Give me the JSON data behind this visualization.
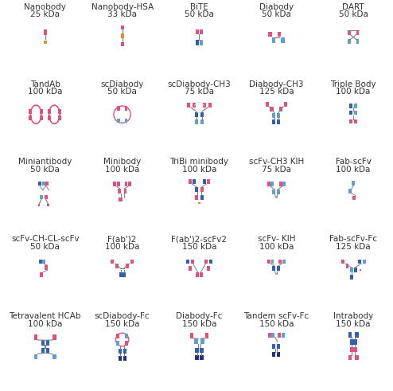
{
  "grid": [
    [
      {
        "name": "Nanobody",
        "mw": "25 kDa",
        "type": "nanobody"
      },
      {
        "name": "Nanobody-HSA",
        "mw": "33 kDa",
        "type": "nanobody_hsa"
      },
      {
        "name": "BiTE",
        "mw": "50 kDa",
        "type": "bite"
      },
      {
        "name": "Diabody",
        "mw": "50 kDa",
        "type": "diabody"
      },
      {
        "name": "DART",
        "mw": "50 kDa",
        "type": "dart"
      }
    ],
    [
      {
        "name": "TandAb",
        "mw": "100 kDa",
        "type": "tandab"
      },
      {
        "name": "scDiabody",
        "mw": "50 kDa",
        "type": "scdiabody"
      },
      {
        "name": "scDiabody-CH3",
        "mw": "75 kDa",
        "type": "scdiabody_ch3"
      },
      {
        "name": "Diabody-CH3",
        "mw": "125 kDa",
        "type": "diabody_ch3"
      },
      {
        "name": "Triple Body",
        "mw": "100 kDa",
        "type": "triple_body"
      }
    ],
    [
      {
        "name": "Miniantibody",
        "mw": "50 kDa",
        "type": "miniantibody"
      },
      {
        "name": "Minibody",
        "mw": "100 kDa",
        "type": "minibody"
      },
      {
        "name": "TriBi minibody",
        "mw": "100 kDa",
        "type": "tribi_minibody"
      },
      {
        "name": "scFv-CH3 KIH",
        "mw": "75 kDa",
        "type": "scfv_ch3_kih"
      },
      {
        "name": "Fab-scFv",
        "mw": "100 kDa",
        "type": "fab_scfv"
      }
    ],
    [
      {
        "name": "scFv-CH-CL-scFv",
        "mw": "50 kDa",
        "type": "scfv_ch_cl_scfv"
      },
      {
        "name": "F(ab')2",
        "mw": "100 kDa",
        "type": "fab2"
      },
      {
        "name": "F(ab')2-scFv2",
        "mw": "150 kDa",
        "type": "fab2_scfv2"
      },
      {
        "name": "scFv- KIH",
        "mw": "100 kDa",
        "type": "scfv_kih"
      },
      {
        "name": "Fab-scFv-Fc",
        "mw": "125 kDa",
        "type": "fab_scfv_fc"
      }
    ],
    [
      {
        "name": "Tetravalent HCAb",
        "mw": "100 kDa",
        "type": "tetravalent_hcab"
      },
      {
        "name": "scDiabody-Fc",
        "mw": "150 kDa",
        "type": "scdiabody_fc"
      },
      {
        "name": "Diabody-Fc",
        "mw": "150 kDa",
        "type": "diabody_fc"
      },
      {
        "name": "Tandem scFv-Fc",
        "mw": "150 kDa",
        "type": "tandem_scfv_fc"
      },
      {
        "name": "Intrabody",
        "mw": "150 kDa",
        "type": "intrabody"
      }
    ]
  ],
  "colors": {
    "pink": "#E05080",
    "blue": "#3060B0",
    "light_blue": "#60A0D0",
    "orange": "#E09030",
    "white": "#FFFFFF",
    "gray": "#AAAAAA",
    "dark_blue": "#203080"
  },
  "bg_color": "#FFFFFF",
  "text_color": "#333333",
  "title_fontsize": 7.5,
  "mw_fontsize": 7.5
}
